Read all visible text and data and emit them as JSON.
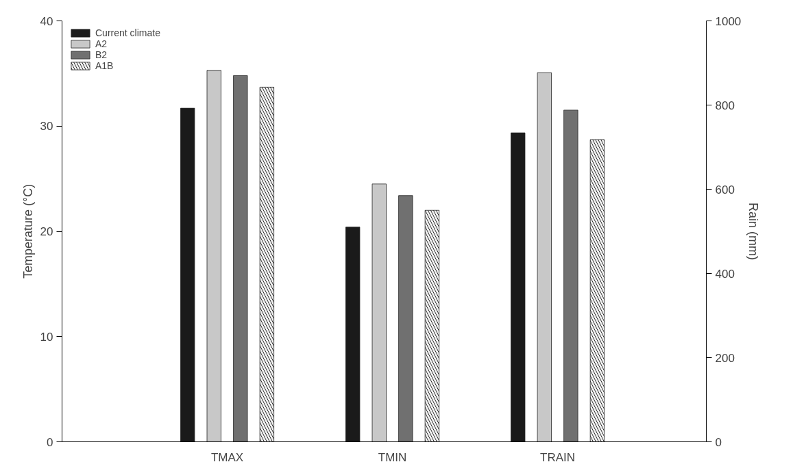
{
  "chart_data": {
    "type": "bar",
    "ylabel": "Temperature (°C)",
    "y2label": "Rain (mm)",
    "categories": [
      "TMAX",
      "TMIN",
      "TRAIN"
    ],
    "series": [
      {
        "name": "Current climate",
        "color": "#1a1a1a",
        "values": [
          31.7,
          20.4,
          null
        ]
      },
      {
        "name": "A2",
        "color": "#c8c8c8",
        "values": [
          35.3,
          24.5,
          null
        ]
      },
      {
        "name": "B2",
        "color": "#707070",
        "values": [
          34.8,
          23.4,
          null
        ]
      },
      {
        "name": "A1B",
        "color": "#f0f0f0",
        "values": [
          33.7,
          22.0,
          null
        ]
      },
      {
        "color": "#1a1a1a",
        "axis": "y2",
        "values": [
          null,
          null,
          734
        ]
      },
      {
        "color": "#c8c8c8",
        "axis": "y2",
        "values": [
          null,
          null,
          877
        ]
      },
      {
        "color": "#707070",
        "axis": "y2",
        "values": [
          null,
          null,
          788
        ]
      },
      {
        "color": "#f0f0f0",
        "axis": "y2",
        "values": [
          null,
          null,
          718
        ]
      }
    ],
    "ylim": [
      0,
      40
    ],
    "yticks": [
      0,
      10,
      20,
      30,
      40
    ],
    "y2lim": [
      0,
      1000
    ],
    "y2ticks": [
      0,
      200,
      400,
      600,
      800,
      1000
    ],
    "legend": "top left",
    "grid": false
  }
}
